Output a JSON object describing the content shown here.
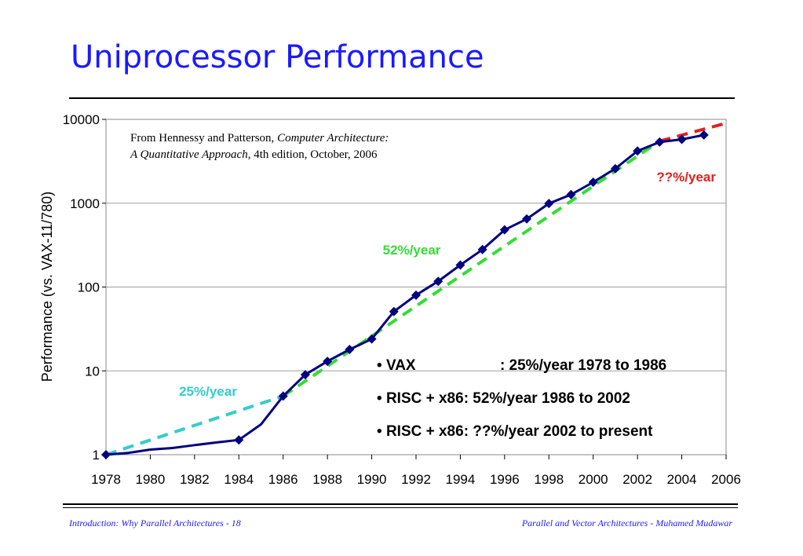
{
  "slide": {
    "title": "Uniprocessor Performance",
    "footer_left": "Introduction: Why Parallel Architectures - 18",
    "footer_right": "Parallel and Vector Architectures - Muhamed Mudawar"
  },
  "source_note": {
    "prefix": "From Hennessy and Patterson, ",
    "book": "Computer Architecture: A Quantitative Approach",
    "suffix": ", 4th edition, October, 2006"
  },
  "bullets": [
    {
      "label": "VAX",
      "text": ": 25%/year 1978 to 1986"
    },
    {
      "label": "RISC + x86",
      "text": ": 52%/year 1986 to 2002"
    },
    {
      "label": "RISC + x86",
      "text": ": ??%/year 2002 to present"
    }
  ],
  "colors": {
    "title": "#1a1aff",
    "series": "#000080",
    "trend_25": "#33cccc",
    "trend_52": "#33dd33",
    "trend_future": "#e02020"
  },
  "chart_data": {
    "type": "line",
    "ylabel": "Performance (vs. VAX-11/780)",
    "xlabel": "",
    "y_scale": "log",
    "ylim": [
      1,
      10000
    ],
    "xlim": [
      1978,
      2006
    ],
    "x_ticks": [
      "1978",
      "1980",
      "1982",
      "1984",
      "1986",
      "1988",
      "1990",
      "1992",
      "1994",
      "1996",
      "1998",
      "2000",
      "2002",
      "2004",
      "2006"
    ],
    "y_ticks": [
      "1",
      "10",
      "100",
      "1000",
      "10000"
    ],
    "grid": "horizontal",
    "series": [
      {
        "x": [
          1978,
          1979,
          1980,
          1981,
          1982,
          1983,
          1984,
          1985,
          1986,
          1987,
          1988,
          1989,
          1990,
          1991,
          1992,
          1993,
          1994,
          1995,
          1996,
          1997,
          1998,
          1999,
          2000,
          2001,
          2002,
          2003,
          2004,
          2005
        ],
        "y": [
          1,
          1.05,
          1.15,
          1.2,
          1.3,
          1.4,
          1.5,
          2.3,
          5,
          9,
          13,
          18,
          24,
          51,
          80,
          117,
          183,
          280,
          481,
          649,
          993,
          1267,
          1779,
          2584,
          4195,
          5364,
          5764,
          6505
        ],
        "markers_at": [
          1978,
          1984,
          1986,
          1987,
          1988,
          1989,
          1990,
          1991,
          1992,
          1993,
          1994,
          1995,
          1996,
          1997,
          1998,
          1999,
          2000,
          2001,
          2002,
          2003,
          2004,
          2005
        ]
      }
    ],
    "trend_lines": [
      {
        "label": "25%/year",
        "x": [
          1978,
          1986
        ],
        "y": [
          1,
          5
        ]
      },
      {
        "label": "52%/year",
        "x": [
          1986,
          2003
        ],
        "y": [
          5,
          5500
        ]
      },
      {
        "label": "??%/year",
        "x": [
          2003,
          2006
        ],
        "y": [
          5500,
          9000
        ]
      }
    ]
  }
}
